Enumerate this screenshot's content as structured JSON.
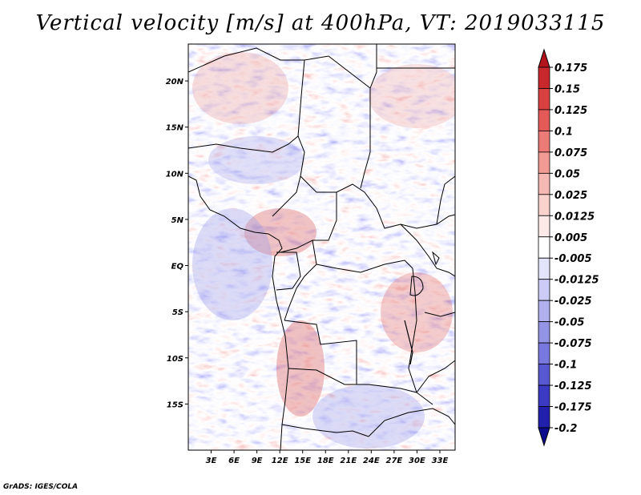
{
  "title": "Vertical velocity [m/s] at 400hPa, VT: 2019033115",
  "credit": "GrADS: IGES/COLA",
  "map": {
    "lon_range": [
      0,
      35
    ],
    "lat_range": [
      -20,
      24
    ],
    "lat_ticks": [
      {
        "value": 20,
        "label": "20N"
      },
      {
        "value": 15,
        "label": "15N"
      },
      {
        "value": 10,
        "label": "10N"
      },
      {
        "value": 5,
        "label": "5N"
      },
      {
        "value": 0,
        "label": "EQ"
      },
      {
        "value": -5,
        "label": "5S"
      },
      {
        "value": -10,
        "label": "10S"
      },
      {
        "value": -15,
        "label": "15S"
      }
    ],
    "lon_ticks": [
      {
        "value": 3,
        "label": "3E"
      },
      {
        "value": 6,
        "label": "6E"
      },
      {
        "value": 9,
        "label": "9E"
      },
      {
        "value": 12,
        "label": "12E"
      },
      {
        "value": 15,
        "label": "15E"
      },
      {
        "value": 18,
        "label": "18E"
      },
      {
        "value": 21,
        "label": "21E"
      },
      {
        "value": 24,
        "label": "24E"
      },
      {
        "value": 27,
        "label": "27E"
      },
      {
        "value": 30,
        "label": "30E"
      },
      {
        "value": 33,
        "label": "33E"
      }
    ]
  },
  "colorbar": {
    "labels": [
      "0.175",
      "0.15",
      "0.125",
      "0.1",
      "0.075",
      "0.05",
      "0.025",
      "0.0125",
      "0.005",
      "-0.005",
      "-0.0125",
      "-0.025",
      "-0.05",
      "-0.075",
      "-0.1",
      "-0.125",
      "-0.175",
      "-0.2"
    ],
    "colors": [
      "#b3141c",
      "#c8282c",
      "#d94040",
      "#e35a58",
      "#ec7a76",
      "#f29a94",
      "#f6b8b2",
      "#fad2cd",
      "#fdeae8",
      "#ffffff",
      "#e3e3fb",
      "#cbcbf6",
      "#b1b1ef",
      "#9494e7",
      "#7878de",
      "#5858d2",
      "#3a3ac2",
      "#2020ac",
      "#0a0a8c"
    ]
  }
}
